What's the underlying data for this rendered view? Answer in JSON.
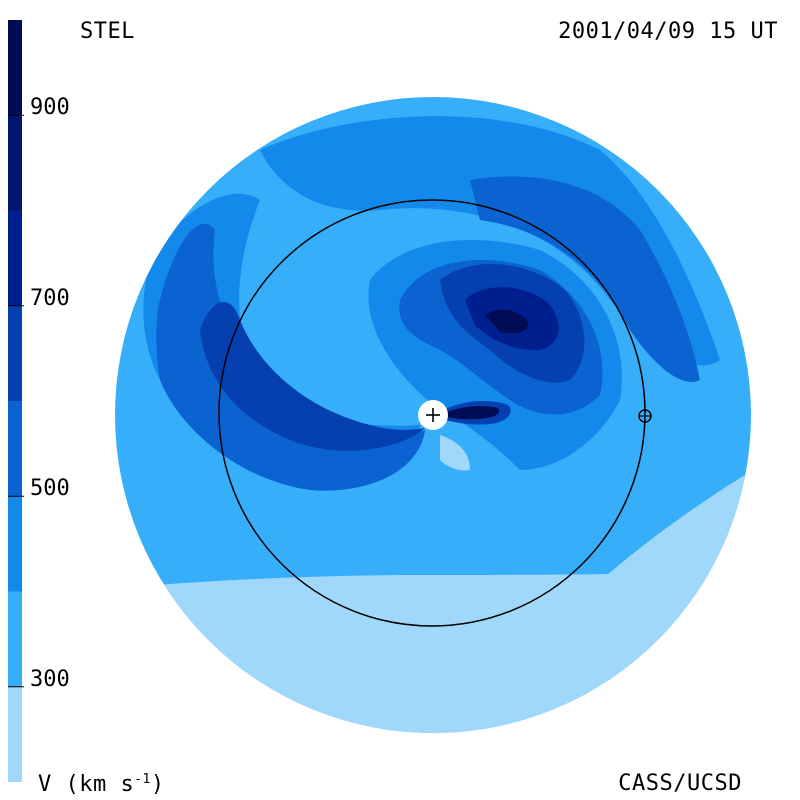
{
  "header": {
    "instrument": "STEL",
    "datetime": "2001/04/09 15 UT"
  },
  "footer": {
    "unit_prefix": "V (km s",
    "unit_exp": "-1",
    "unit_suffix": ")",
    "credit": "CASS/UCSD"
  },
  "colors": {
    "level_0": "#9fd8fa",
    "level_1": "#37aef9",
    "level_2": "#1289eb",
    "level_3": "#0a63d1",
    "level_4": "#0440b0",
    "level_5": "#001f8e",
    "level_6": "#001470",
    "level_7": "#000c56",
    "level_8": "#00063f",
    "level_9": "#000229"
  },
  "chart_data": {
    "type": "heatmap",
    "title": "",
    "colorbar": {
      "label": "V (km s-1)",
      "range": [
        200,
        1000
      ],
      "levels": [
        200,
        300,
        400,
        500,
        600,
        700,
        800,
        900,
        1000
      ],
      "ticks": [
        {
          "value": 300,
          "label": "300"
        },
        {
          "value": 500,
          "label": "500"
        },
        {
          "value": 700,
          "label": "700"
        },
        {
          "value": 900,
          "label": "900"
        }
      ]
    },
    "map": {
      "projection": "ecliptic polar (solar wind speed)",
      "earth_orbit_circle": true,
      "sun_marker": "+",
      "earth_marker": "⊕"
    }
  }
}
